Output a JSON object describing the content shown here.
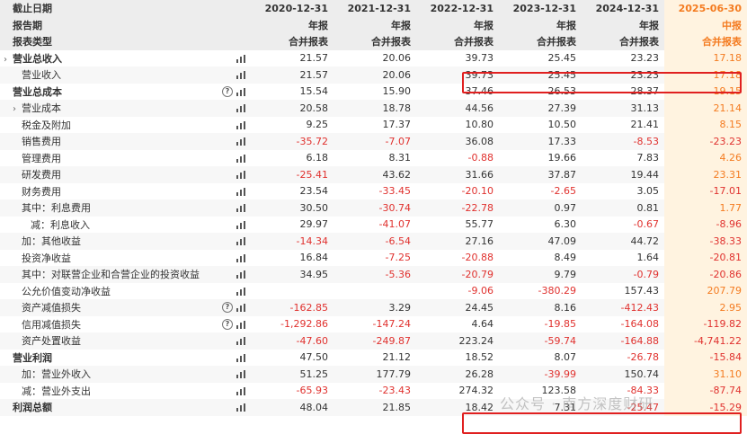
{
  "header": {
    "rows": [
      {
        "label": "截止日期",
        "values": [
          "2020-12-31",
          "2021-12-31",
          "2022-12-31",
          "2023-12-31",
          "2024-12-31",
          "2025-06-30"
        ]
      },
      {
        "label": "报告期",
        "values": [
          "年报",
          "年报",
          "年报",
          "年报",
          "年报",
          "中报"
        ]
      },
      {
        "label": "报表类型",
        "values": [
          "合并报表",
          "合并报表",
          "合并报表",
          "合并报表",
          "合并报表",
          "合并报表"
        ]
      }
    ]
  },
  "rows": [
    {
      "label": "营业总收入",
      "chevron": true,
      "values": [
        "21.57",
        "20.06",
        "39.73",
        "25.45",
        "23.23",
        "17.18"
      ]
    },
    {
      "label": "营业收入",
      "values": [
        "21.57",
        "20.06",
        "39.73",
        "25.45",
        "23.23",
        "17.18"
      ]
    },
    {
      "label": "营业总成本",
      "help": true,
      "values": [
        "15.54",
        "15.90",
        "37.46",
        "26.53",
        "28.37",
        "19.15"
      ]
    },
    {
      "label": "营业成本",
      "chevron": true,
      "values": [
        "20.58",
        "18.78",
        "44.56",
        "27.39",
        "31.13",
        "21.14"
      ]
    },
    {
      "label": "税金及附加",
      "values": [
        "9.25",
        "17.37",
        "10.80",
        "10.50",
        "21.41",
        "8.15"
      ]
    },
    {
      "label": "销售费用",
      "values": [
        "-35.72",
        "-7.07",
        "36.08",
        "17.33",
        "-8.53",
        "-23.23"
      ]
    },
    {
      "label": "管理费用",
      "values": [
        "6.18",
        "8.31",
        "-0.88",
        "19.66",
        "7.83",
        "4.26"
      ]
    },
    {
      "label": "研发费用",
      "values": [
        "-25.41",
        "43.62",
        "31.66",
        "37.87",
        "19.44",
        "23.31"
      ]
    },
    {
      "label": "财务费用",
      "values": [
        "23.54",
        "-33.45",
        "-20.10",
        "-2.65",
        "3.05",
        "-17.01"
      ]
    },
    {
      "label": "其中：利息费用",
      "values": [
        "30.50",
        "-30.74",
        "-22.78",
        "0.97",
        "0.81",
        "1.77"
      ]
    },
    {
      "label": "减：利息收入",
      "values": [
        "29.97",
        "-41.07",
        "55.77",
        "6.30",
        "-0.67",
        "-8.96"
      ]
    },
    {
      "label": "加：其他收益",
      "values": [
        "-14.34",
        "-6.54",
        "27.16",
        "47.09",
        "44.72",
        "-38.33"
      ]
    },
    {
      "label": "投资净收益",
      "values": [
        "16.84",
        "-7.25",
        "-20.88",
        "8.49",
        "1.64",
        "-20.81"
      ]
    },
    {
      "label": "其中：对联营企业和合营企业的投资收益",
      "values": [
        "34.95",
        "-5.36",
        "-20.79",
        "9.79",
        "-0.79",
        "-20.86"
      ]
    },
    {
      "label": "公允价值变动净收益",
      "values": [
        "",
        "",
        "-9.06",
        "-380.29",
        "157.43",
        "207.79"
      ]
    },
    {
      "label": "资产减值损失",
      "help": true,
      "values": [
        "-162.85",
        "3.29",
        "24.45",
        "8.16",
        "-412.43",
        "2.95"
      ]
    },
    {
      "label": "信用减值损失",
      "help": true,
      "values": [
        "-1,292.86",
        "-147.24",
        "4.64",
        "-19.85",
        "-164.08",
        "-119.82"
      ]
    },
    {
      "label": "资产处置收益",
      "values": [
        "-47.60",
        "-249.87",
        "223.24",
        "-59.74",
        "-164.88",
        "-4,741.22"
      ]
    },
    {
      "label": "营业利润",
      "values": [
        "47.50",
        "21.12",
        "18.52",
        "8.07",
        "-26.78",
        "-15.84"
      ]
    },
    {
      "label": "加：营业外收入",
      "values": [
        "51.25",
        "177.79",
        "26.28",
        "-39.99",
        "150.74",
        "31.10"
      ]
    },
    {
      "label": "减：营业外支出",
      "values": [
        "-65.93",
        "-23.43",
        "274.32",
        "123.58",
        "-84.33",
        "-87.74"
      ]
    },
    {
      "label": "利润总额",
      "values": [
        "48.04",
        "21.85",
        "18.42",
        "7.31",
        "-25.47",
        "-15.29"
      ]
    }
  ],
  "watermark": "公众号 · 南方深度财研",
  "colors": {
    "negative": "#e0312e",
    "highlight_col": "#f47b20",
    "annotation_box": "#e02020"
  }
}
